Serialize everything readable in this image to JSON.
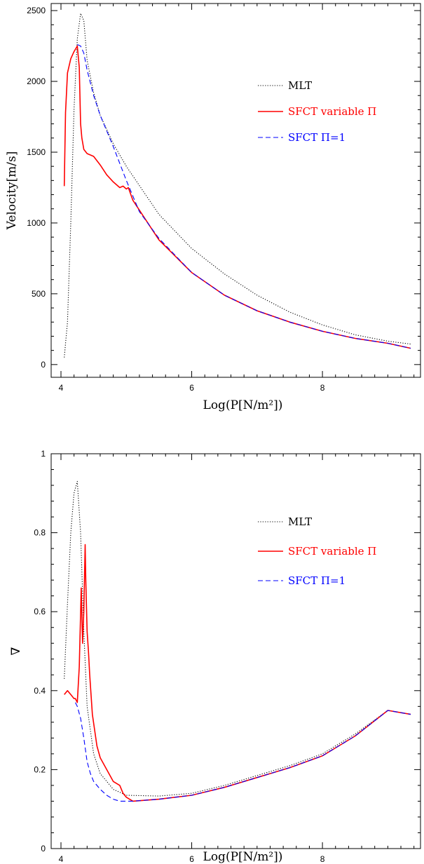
{
  "chart_data": [
    {
      "type": "line",
      "xlabel": "Log(P[N/m²])",
      "ylabel": "Velocity[m/s]",
      "xlim": [
        3.85,
        9.5
      ],
      "ylim": [
        -90,
        2550
      ],
      "xticks": [
        4,
        6,
        8
      ],
      "xtick_labels": [
        "4",
        "6",
        "8"
      ],
      "yticks": [
        0,
        500,
        1000,
        1500,
        2000,
        2500
      ],
      "ytick_labels": [
        "0",
        "500",
        "1000",
        "1500",
        "2000",
        "2500"
      ],
      "legend_position": "upper-right",
      "series": [
        {
          "name": "MLT",
          "color": "#000000",
          "dash": "dotted",
          "x": [
            4.05,
            4.1,
            4.15,
            4.2,
            4.25,
            4.3,
            4.35,
            4.4,
            4.5,
            4.6,
            4.8,
            5.0,
            5.5,
            6.0,
            6.5,
            7.0,
            7.5,
            8.0,
            8.5,
            9.0,
            9.35
          ],
          "y": [
            50,
            300,
            1000,
            1800,
            2300,
            2480,
            2430,
            2150,
            1920,
            1760,
            1560,
            1400,
            1060,
            820,
            640,
            490,
            370,
            280,
            210,
            165,
            145
          ]
        },
        {
          "name": "SFCT variable Π",
          "color": "#ff0000",
          "dash": "solid",
          "x": [
            4.05,
            4.07,
            4.1,
            4.15,
            4.2,
            4.25,
            4.28,
            4.3,
            4.32,
            4.35,
            4.4,
            4.5,
            4.6,
            4.7,
            4.8,
            4.9,
            4.95,
            5.0,
            5.03,
            5.1,
            5.5,
            6.0,
            6.5,
            7.0,
            7.5,
            8.0,
            8.5,
            9.0,
            9.35
          ],
          "y": [
            1260,
            1780,
            2060,
            2160,
            2210,
            2250,
            2100,
            1700,
            1600,
            1520,
            1490,
            1470,
            1410,
            1340,
            1290,
            1250,
            1260,
            1240,
            1250,
            1160,
            880,
            650,
            490,
            380,
            300,
            235,
            185,
            150,
            115
          ]
        },
        {
          "name": "SFCT Π=1",
          "color": "#0000ff",
          "dash": "dashed",
          "x": [
            4.25,
            4.3,
            4.35,
            4.4,
            4.5,
            4.6,
            4.8,
            5.0,
            5.2,
            5.5,
            6.0,
            6.5,
            7.0,
            7.5,
            8.0,
            8.5,
            9.0,
            9.35
          ],
          "y": [
            2260,
            2250,
            2200,
            2080,
            1900,
            1760,
            1540,
            1300,
            1080,
            890,
            650,
            490,
            380,
            300,
            235,
            185,
            150,
            115
          ]
        }
      ]
    },
    {
      "type": "line",
      "xlabel": "Log(P[N/m²])",
      "ylabel": "∇",
      "xlim": [
        3.85,
        9.5
      ],
      "ylim": [
        0,
        1
      ],
      "xticks": [
        4,
        6,
        8
      ],
      "xtick_labels": [
        "4",
        "6",
        "8"
      ],
      "yticks": [
        0,
        0.2,
        0.4,
        0.6,
        0.8,
        1
      ],
      "ytick_labels": [
        "0",
        "0.2",
        "0.4",
        "0.6",
        "0.8",
        "1"
      ],
      "legend_position": "upper-right",
      "series": [
        {
          "name": "MLT",
          "color": "#000000",
          "dash": "dotted",
          "x": [
            4.05,
            4.1,
            4.15,
            4.2,
            4.25,
            4.3,
            4.35,
            4.4,
            4.5,
            4.6,
            4.8,
            5.0,
            5.5,
            6.0,
            6.5,
            7.0,
            7.5,
            8.0,
            8.5,
            9.0,
            9.35
          ],
          "y": [
            0.43,
            0.62,
            0.8,
            0.9,
            0.93,
            0.8,
            0.55,
            0.36,
            0.24,
            0.19,
            0.15,
            0.135,
            0.133,
            0.14,
            0.16,
            0.185,
            0.21,
            0.24,
            0.29,
            0.35,
            0.34
          ]
        },
        {
          "name": "SFCT variable Π",
          "color": "#ff0000",
          "dash": "solid",
          "x": [
            4.05,
            4.1,
            4.15,
            4.2,
            4.22,
            4.25,
            4.28,
            4.31,
            4.33,
            4.35,
            4.37,
            4.38,
            4.4,
            4.42,
            4.44,
            4.48,
            4.55,
            4.6,
            4.7,
            4.8,
            4.9,
            4.95,
            5.0,
            5.1,
            5.5,
            6.0,
            6.5,
            7.0,
            7.5,
            8.0,
            8.5,
            9.0,
            9.35
          ],
          "y": [
            0.39,
            0.4,
            0.39,
            0.38,
            0.38,
            0.37,
            0.46,
            0.66,
            0.52,
            0.6,
            0.77,
            0.68,
            0.55,
            0.5,
            0.44,
            0.34,
            0.26,
            0.23,
            0.2,
            0.17,
            0.16,
            0.14,
            0.13,
            0.12,
            0.125,
            0.135,
            0.155,
            0.18,
            0.205,
            0.235,
            0.285,
            0.35,
            0.34
          ]
        },
        {
          "name": "SFCT Π=1",
          "color": "#0000ff",
          "dash": "dashed",
          "x": [
            4.22,
            4.25,
            4.3,
            4.35,
            4.4,
            4.45,
            4.5,
            4.6,
            4.7,
            4.8,
            4.9,
            5.0,
            5.1,
            5.5,
            6.0,
            6.5,
            7.0,
            7.5,
            8.0,
            8.5,
            9.0,
            9.35
          ],
          "y": [
            0.37,
            0.36,
            0.33,
            0.28,
            0.22,
            0.19,
            0.17,
            0.15,
            0.135,
            0.125,
            0.12,
            0.12,
            0.12,
            0.125,
            0.135,
            0.155,
            0.18,
            0.205,
            0.235,
            0.285,
            0.35,
            0.34
          ]
        }
      ]
    }
  ]
}
